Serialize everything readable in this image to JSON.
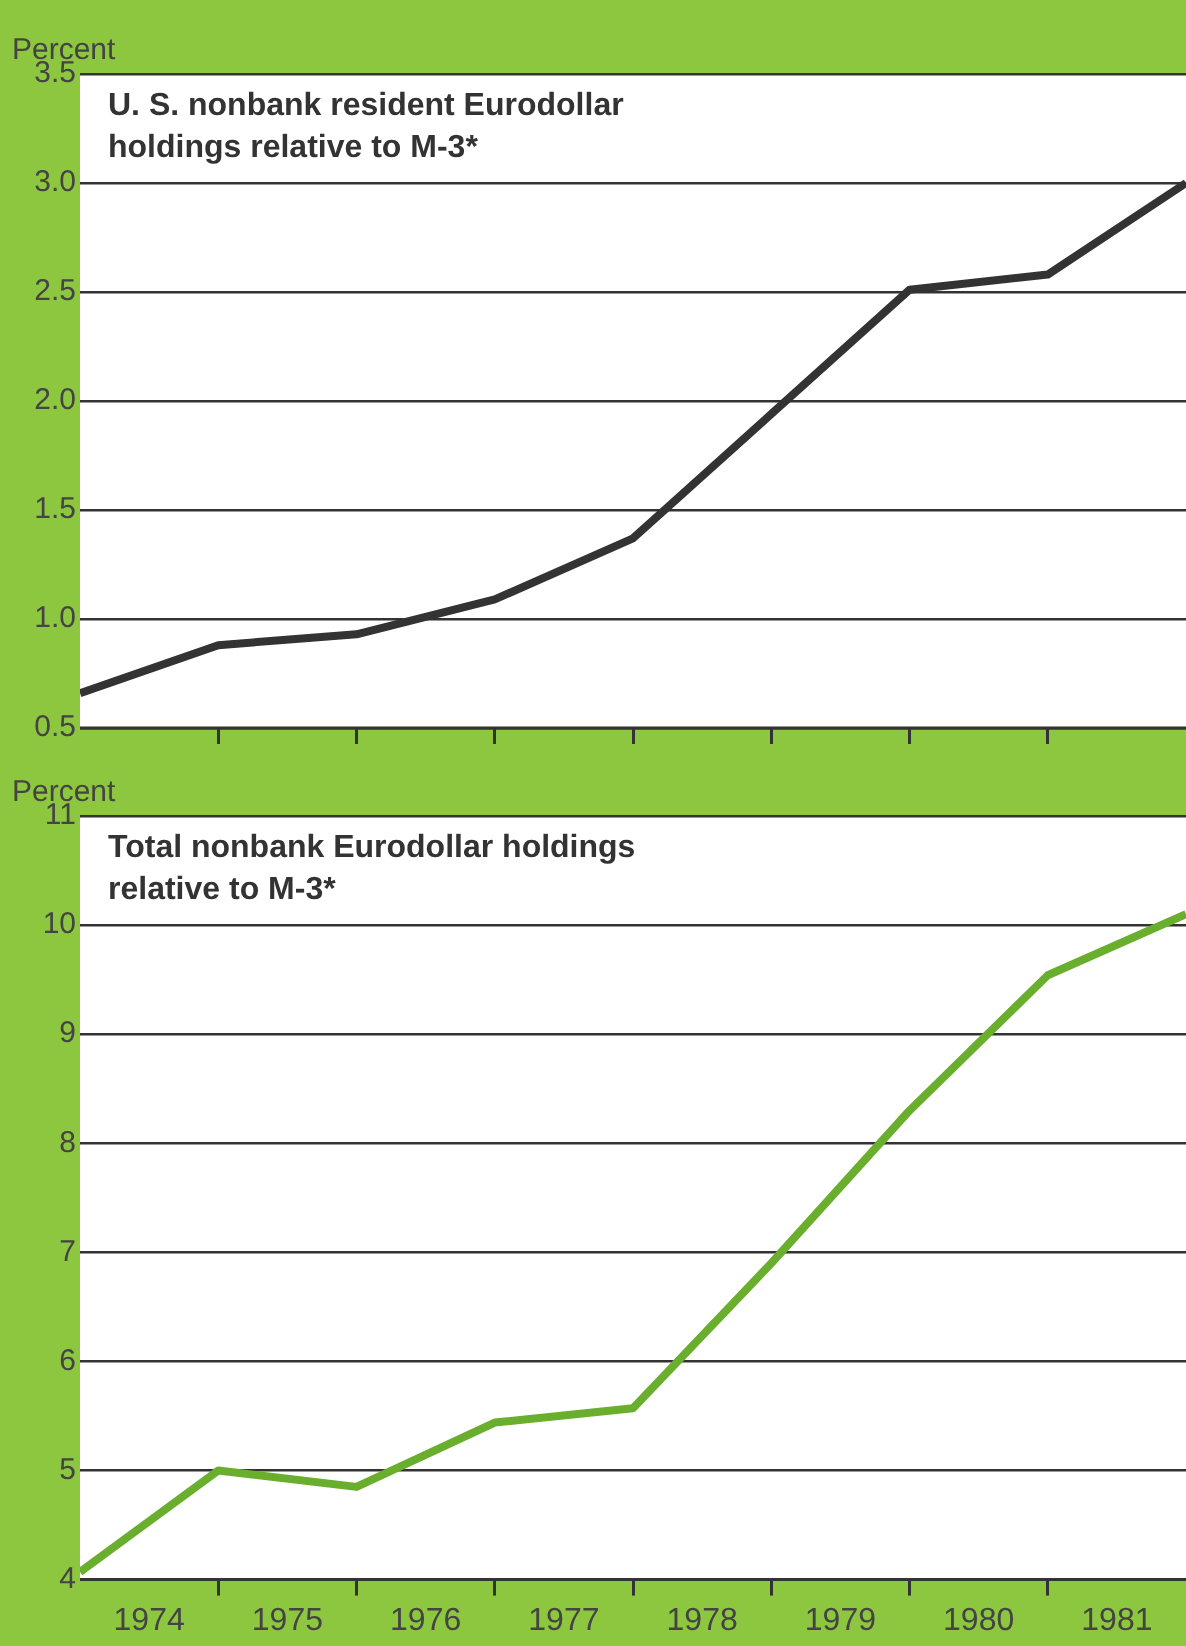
{
  "chart_data": [
    {
      "type": "line",
      "title": "U. S. nonbank resident Eurodollar holdings relative to M-3*",
      "ylabel": "Percent",
      "x": [
        1974,
        1975,
        1976,
        1977,
        1978,
        1979,
        1980,
        1981,
        1982
      ],
      "series": [
        {
          "color": "#333333",
          "values": [
            0.66,
            0.88,
            0.93,
            1.09,
            1.37,
            1.94,
            2.51,
            2.58,
            3.0
          ]
        }
      ],
      "xlim": [
        1974,
        1982
      ],
      "xticks": [
        {
          "value": 1975,
          "label": null
        },
        {
          "value": 1976,
          "label": null
        },
        {
          "value": 1977,
          "label": null
        },
        {
          "value": 1978,
          "label": null
        },
        {
          "value": 1979,
          "label": null
        },
        {
          "value": 1980,
          "label": null
        },
        {
          "value": 1981,
          "label": null
        }
      ],
      "ylim": [
        0.5,
        3.5
      ],
      "yticks": [
        0.5,
        {
          "value": 1,
          "label": "1.0"
        },
        1.5,
        {
          "value": 2,
          "label": "2.0"
        },
        2.5,
        {
          "value": 3,
          "label": "3.0"
        },
        3.5
      ],
      "tick_labels": "y",
      "grid": "y",
      "legend": false,
      "marker": "none",
      "line_style": "solid"
    },
    {
      "type": "line",
      "title": "Total nonbank Eurodollar holdings relative to M-3*",
      "ylabel": "Percent",
      "x": [
        1974,
        1975,
        1976,
        1977,
        1978,
        1979,
        1980,
        1981,
        1982
      ],
      "series": [
        {
          "color": "#6aae2e",
          "values": [
            4.07,
            5.0,
            4.85,
            5.44,
            5.57,
            6.9,
            8.3,
            9.54,
            10.1
          ]
        }
      ],
      "xlim": [
        1974,
        1982
      ],
      "xticks": [
        {
          "value": 1974.5,
          "label": "1974"
        },
        {
          "value": 1975,
          "label": null
        },
        {
          "value": 1975.5,
          "label": "1975"
        },
        {
          "value": 1976,
          "label": null
        },
        {
          "value": 1976.5,
          "label": "1976"
        },
        {
          "value": 1977,
          "label": null
        },
        {
          "value": 1977.5,
          "label": "1977"
        },
        {
          "value": 1978,
          "label": null
        },
        {
          "value": 1978.5,
          "label": "1978"
        },
        {
          "value": 1979,
          "label": null
        },
        {
          "value": 1979.5,
          "label": "1979"
        },
        {
          "value": 1980,
          "label": null
        },
        {
          "value": 1980.5,
          "label": "1980"
        },
        {
          "value": 1981,
          "label": null
        },
        {
          "value": 1981.5,
          "label": "1981"
        }
      ],
      "ylim": [
        4,
        11
      ],
      "yticks": [
        4,
        5,
        6,
        7,
        8,
        9,
        10,
        11
      ],
      "grid": "y",
      "legend": false,
      "marker": "none",
      "line_style": "solid"
    }
  ]
}
